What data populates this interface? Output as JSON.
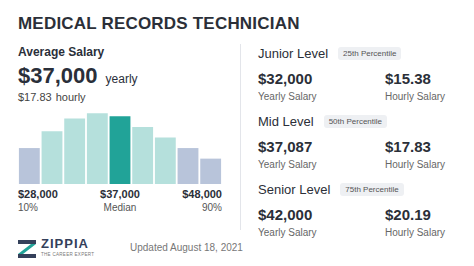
{
  "header": {
    "title": "MEDICAL RECORDS TECHNICIAN"
  },
  "average": {
    "label": "Average Salary",
    "yearly": "$37,000",
    "yearly_unit": "yearly",
    "hourly": "$17.83",
    "hourly_unit": "hourly"
  },
  "chart_data": {
    "type": "bar",
    "categories": [
      null,
      null,
      null,
      null,
      null,
      null,
      null,
      null,
      null
    ],
    "values": [
      34,
      50,
      62,
      67,
      64,
      54,
      44,
      34,
      24
    ],
    "colors": [
      "#b8c4da",
      "#b5e0dc",
      "#b5e0dc",
      "#b5e0dc",
      "#21a398",
      "#b5e0dc",
      "#b5e0dc",
      "#b8c4da",
      "#b8c4da"
    ],
    "ylim": [
      0,
      70
    ],
    "tick_labels": false,
    "grid": false
  },
  "distribution_labels": [
    {
      "value": "$28,000",
      "label": "10%"
    },
    {
      "value": "$37,000",
      "label": "Median"
    },
    {
      "value": "$48,000",
      "label": "90%"
    }
  ],
  "levels": [
    {
      "level": "Junior Level",
      "percentile": "25th Percentile",
      "yearly": "$32,000",
      "yearly_label": "Yearly Salary",
      "hourly": "$15.38",
      "hourly_label": "Hourly Salary"
    },
    {
      "level": "Mid Level",
      "percentile": "50th Percentile",
      "yearly": "$37,087",
      "yearly_label": "Yearly Salary",
      "hourly": "$17.83",
      "hourly_label": "Hourly Salary"
    },
    {
      "level": "Senior Level",
      "percentile": "75th Percentile",
      "yearly": "$42,000",
      "yearly_label": "Yearly Salary",
      "hourly": "$20.19",
      "hourly_label": "Hourly Salary"
    }
  ],
  "footer": {
    "logo": "ZIPPIA",
    "tagline": "THE CAREER EXPERT",
    "updated": "Updated August 18, 2021"
  }
}
